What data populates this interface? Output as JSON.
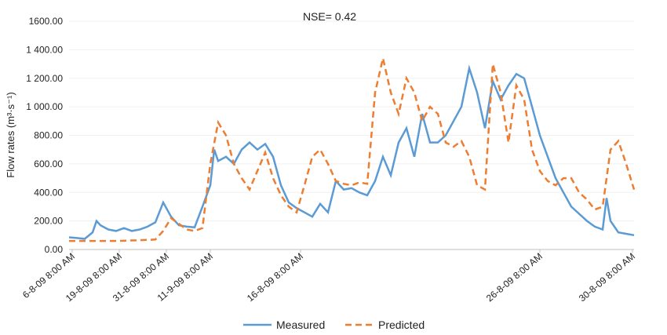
{
  "chart_data": {
    "type": "line",
    "title": "NSE= 0.42",
    "y_label": "Flow rates (m³·s⁻¹)",
    "xlim": [
      0,
      720
    ],
    "xticks": [
      {
        "value": 4,
        "label": "6-8-09 8:00 AM"
      },
      {
        "value": 64,
        "label": "19-8-09 8:00 AM"
      },
      {
        "value": 124,
        "label": "31-8-09 8:00 AM"
      },
      {
        "value": 180,
        "label": "11-9-09 8:00 AM"
      },
      {
        "value": 295,
        "label": "16-8-09 8:00 AM"
      },
      {
        "value": 600,
        "label": "26-8-09 8:00 AM"
      },
      {
        "value": 718,
        "label": "30-8-09 8:00 AM"
      }
    ],
    "ylim": [
      0,
      1600
    ],
    "yticks": [
      {
        "value": 0,
        "label": "0.00"
      },
      {
        "value": 200,
        "label": "200.00"
      },
      {
        "value": 400,
        "label": "400.00"
      },
      {
        "value": 600,
        "label": "600.00"
      },
      {
        "value": 800,
        "label": "800.00"
      },
      {
        "value": 1000,
        "label": "1 000.00"
      },
      {
        "value": 1200,
        "label": "1 200.00"
      },
      {
        "value": 1400,
        "label": "1 400.00"
      },
      {
        "value": 1600,
        "label": "1600.00"
      }
    ],
    "grid": true,
    "series": [
      {
        "name": "Measured",
        "color": "#5b9bd5",
        "dash": false,
        "x": [
          0,
          10,
          20,
          30,
          35,
          40,
          50,
          60,
          70,
          80,
          90,
          100,
          110,
          120,
          130,
          140,
          150,
          160,
          170,
          180,
          185,
          190,
          200,
          210,
          220,
          230,
          240,
          250,
          260,
          270,
          280,
          290,
          300,
          310,
          320,
          330,
          340,
          350,
          360,
          370,
          380,
          390,
          400,
          410,
          420,
          430,
          440,
          450,
          460,
          470,
          480,
          490,
          500,
          510,
          520,
          530,
          540,
          550,
          560,
          570,
          580,
          590,
          600,
          610,
          620,
          630,
          640,
          650,
          660,
          670,
          680,
          685,
          690,
          700,
          710,
          720
        ],
        "values": [
          85,
          80,
          75,
          120,
          200,
          170,
          140,
          130,
          150,
          130,
          140,
          160,
          190,
          330,
          230,
          170,
          160,
          155,
          300,
          450,
          700,
          620,
          650,
          600,
          700,
          750,
          700,
          740,
          650,
          450,
          330,
          290,
          260,
          230,
          320,
          260,
          480,
          420,
          430,
          400,
          380,
          480,
          650,
          520,
          750,
          850,
          650,
          950,
          750,
          750,
          800,
          900,
          1000,
          1270,
          1100,
          850,
          1180,
          1050,
          1150,
          1230,
          1200,
          1000,
          800,
          650,
          500,
          400,
          300,
          250,
          200,
          160,
          140,
          360,
          200,
          120,
          110,
          100
        ]
      },
      {
        "name": "Predicted",
        "color": "#ed7d31",
        "dash": true,
        "x": [
          0,
          30,
          60,
          90,
          110,
          120,
          130,
          140,
          150,
          160,
          170,
          180,
          190,
          200,
          210,
          220,
          230,
          240,
          250,
          260,
          270,
          280,
          290,
          300,
          310,
          320,
          330,
          340,
          350,
          360,
          370,
          380,
          390,
          400,
          410,
          420,
          430,
          440,
          450,
          460,
          470,
          480,
          490,
          500,
          510,
          520,
          530,
          540,
          550,
          560,
          570,
          580,
          590,
          600,
          610,
          620,
          630,
          640,
          650,
          660,
          670,
          680,
          690,
          700,
          710,
          720
        ],
        "values": [
          60,
          60,
          60,
          65,
          70,
          130,
          220,
          180,
          140,
          130,
          150,
          600,
          890,
          800,
          600,
          500,
          420,
          550,
          680,
          500,
          380,
          300,
          260,
          450,
          650,
          700,
          600,
          480,
          460,
          450,
          470,
          460,
          1100,
          1340,
          1100,
          950,
          1200,
          1100,
          900,
          1000,
          950,
          750,
          720,
          760,
          650,
          450,
          420,
          1300,
          1100,
          750,
          1150,
          1050,
          700,
          550,
          480,
          450,
          500,
          500,
          400,
          350,
          280,
          300,
          700,
          760,
          600,
          420
        ]
      }
    ]
  }
}
